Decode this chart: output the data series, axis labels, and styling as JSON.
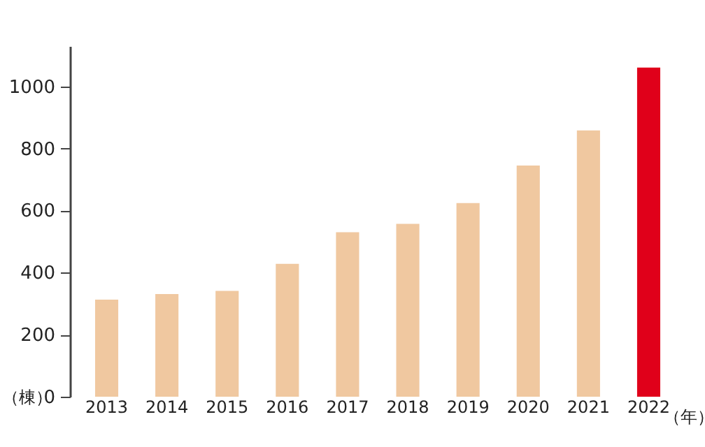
{
  "chart_data": {
    "type": "bar",
    "xlabel": "（年）",
    "ylabel": "（棟）",
    "categories": [
      "2013",
      "2014",
      "2015",
      "2016",
      "2017",
      "2018",
      "2019",
      "2020",
      "2021",
      "2022"
    ],
    "values": [
      313,
      331,
      341,
      428,
      530,
      557,
      624,
      745,
      858,
      1061
    ],
    "colors": [
      "#f0c8a0",
      "#f0c8a0",
      "#f0c8a0",
      "#f0c8a0",
      "#f0c8a0",
      "#f0c8a0",
      "#f0c8a0",
      "#f0c8a0",
      "#f0c8a0",
      "#e0001a"
    ],
    "ylim": [
      0,
      1130
    ],
    "yticks": [
      0,
      200,
      400,
      600,
      800,
      1000
    ],
    "grid": false,
    "legend": false
  }
}
